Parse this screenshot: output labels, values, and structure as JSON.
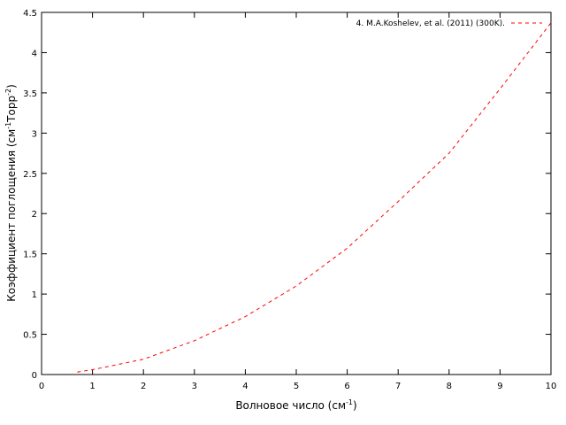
{
  "chart_data": {
    "type": "line",
    "x_label": [
      "Волновое число (см",
      "-1",
      ")"
    ],
    "y_label": [
      "Коэффициент поглощения (см",
      "-1",
      "Торр",
      "-2",
      ")"
    ],
    "x": [
      0.7,
      1,
      2,
      3,
      4,
      5,
      6,
      7,
      8,
      9,
      10
    ],
    "series": [
      {
        "name": "4. M.A.Koshelev, et al. (2011) (300K).",
        "color": "#ff0000",
        "values": [
          0.03,
          0.06,
          0.19,
          0.42,
          0.72,
          1.1,
          1.57,
          2.15,
          2.75,
          3.55,
          4.37
        ]
      }
    ],
    "xlim": [
      0,
      10
    ],
    "xticks": [
      0,
      1,
      2,
      3,
      4,
      5,
      6,
      7,
      8,
      9,
      10
    ],
    "ylim": [
      0,
      4.5
    ],
    "yticks": [
      0,
      0.5,
      1,
      1.5,
      2,
      2.5,
      3,
      3.5,
      4,
      4.5
    ],
    "legend": "top-right"
  }
}
